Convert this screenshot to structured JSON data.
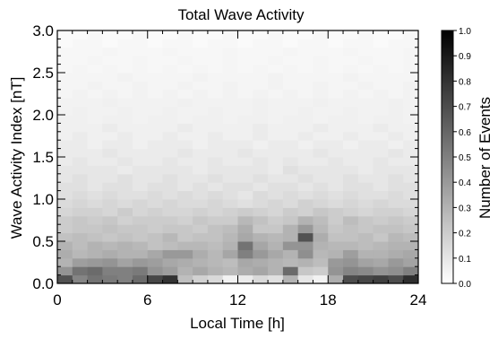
{
  "chart_data": {
    "type": "heatmap",
    "title": "Total Wave Activity",
    "xlabel": "Local Time [h]",
    "ylabel": "Wave Activity Index [nT]",
    "colorbar_label": "Number of Events",
    "x_range": [
      0,
      24
    ],
    "y_range": [
      0,
      3.0
    ],
    "x_ticks": [
      "0",
      "6",
      "12",
      "18",
      "24"
    ],
    "y_ticks": [
      "0.0",
      "0.5",
      "1.0",
      "1.5",
      "2.0",
      "2.5",
      "3.0"
    ],
    "colorbar_range": [
      0,
      1.0
    ],
    "colorbar_ticks": [
      "0.0",
      "0.1",
      "0.2",
      "0.3",
      "0.4",
      "0.5",
      "0.6",
      "0.7",
      "0.8",
      "0.9",
      "1.0"
    ],
    "colormap": "white-to-black (greyscale)",
    "x_bin_width": 1,
    "y_bin_width": 0.1,
    "values": [
      [
        0.68,
        0.48,
        0.55,
        0.52,
        0.5,
        0.58,
        0.72,
        0.8,
        0.25,
        0.18,
        0.15,
        0.05,
        0.08,
        0.15,
        0.12,
        0.3,
        0.1,
        0.05,
        0.32,
        0.7,
        0.72,
        0.75,
        0.7,
        0.82
      ],
      [
        0.42,
        0.55,
        0.58,
        0.5,
        0.5,
        0.52,
        0.42,
        0.38,
        0.3,
        0.34,
        0.3,
        0.28,
        0.32,
        0.35,
        0.3,
        0.58,
        0.22,
        0.2,
        0.42,
        0.48,
        0.46,
        0.42,
        0.44,
        0.5
      ],
      [
        0.3,
        0.38,
        0.4,
        0.42,
        0.36,
        0.4,
        0.38,
        0.34,
        0.32,
        0.3,
        0.28,
        0.26,
        0.34,
        0.32,
        0.3,
        0.28,
        0.3,
        0.26,
        0.4,
        0.42,
        0.36,
        0.34,
        0.4,
        0.36
      ],
      [
        0.32,
        0.28,
        0.3,
        0.32,
        0.3,
        0.3,
        0.34,
        0.4,
        0.4,
        0.32,
        0.28,
        0.35,
        0.5,
        0.4,
        0.34,
        0.3,
        0.44,
        0.28,
        0.3,
        0.38,
        0.3,
        0.3,
        0.32,
        0.34
      ],
      [
        0.3,
        0.26,
        0.3,
        0.28,
        0.3,
        0.28,
        0.24,
        0.26,
        0.28,
        0.28,
        0.26,
        0.3,
        0.55,
        0.35,
        0.3,
        0.42,
        0.42,
        0.3,
        0.28,
        0.28,
        0.26,
        0.28,
        0.3,
        0.3
      ],
      [
        0.24,
        0.26,
        0.24,
        0.22,
        0.24,
        0.22,
        0.24,
        0.28,
        0.22,
        0.24,
        0.24,
        0.28,
        0.34,
        0.3,
        0.28,
        0.3,
        0.68,
        0.32,
        0.24,
        0.24,
        0.26,
        0.22,
        0.28,
        0.26
      ],
      [
        0.2,
        0.22,
        0.22,
        0.24,
        0.22,
        0.22,
        0.2,
        0.22,
        0.22,
        0.2,
        0.24,
        0.26,
        0.32,
        0.22,
        0.22,
        0.3,
        0.4,
        0.28,
        0.22,
        0.24,
        0.22,
        0.24,
        0.24,
        0.22
      ],
      [
        0.2,
        0.22,
        0.2,
        0.22,
        0.18,
        0.2,
        0.2,
        0.2,
        0.18,
        0.22,
        0.2,
        0.2,
        0.28,
        0.24,
        0.2,
        0.22,
        0.3,
        0.26,
        0.2,
        0.26,
        0.22,
        0.2,
        0.22,
        0.2
      ],
      [
        0.16,
        0.18,
        0.18,
        0.16,
        0.2,
        0.16,
        0.18,
        0.16,
        0.16,
        0.18,
        0.16,
        0.18,
        0.2,
        0.18,
        0.16,
        0.2,
        0.18,
        0.22,
        0.2,
        0.18,
        0.16,
        0.18,
        0.18,
        0.16
      ],
      [
        0.14,
        0.16,
        0.14,
        0.16,
        0.14,
        0.16,
        0.14,
        0.16,
        0.14,
        0.14,
        0.16,
        0.14,
        0.12,
        0.14,
        0.16,
        0.14,
        0.18,
        0.16,
        0.14,
        0.16,
        0.14,
        0.16,
        0.14,
        0.14
      ],
      [
        0.12,
        0.14,
        0.12,
        0.14,
        0.12,
        0.12,
        0.14,
        0.12,
        0.14,
        0.12,
        0.14,
        0.12,
        0.1,
        0.14,
        0.12,
        0.14,
        0.12,
        0.14,
        0.12,
        0.14,
        0.12,
        0.12,
        0.14,
        0.12
      ],
      [
        0.12,
        0.12,
        0.1,
        0.12,
        0.12,
        0.1,
        0.12,
        0.12,
        0.1,
        0.12,
        0.1,
        0.12,
        0.12,
        0.1,
        0.12,
        0.12,
        0.1,
        0.12,
        0.1,
        0.12,
        0.12,
        0.1,
        0.12,
        0.12
      ],
      [
        0.1,
        0.12,
        0.1,
        0.1,
        0.12,
        0.1,
        0.1,
        0.12,
        0.1,
        0.1,
        0.12,
        0.1,
        0.1,
        0.12,
        0.1,
        0.1,
        0.12,
        0.1,
        0.1,
        0.12,
        0.1,
        0.1,
        0.12,
        0.1
      ],
      [
        0.1,
        0.1,
        0.1,
        0.1,
        0.08,
        0.1,
        0.1,
        0.1,
        0.1,
        0.08,
        0.1,
        0.1,
        0.1,
        0.1,
        0.08,
        0.12,
        0.1,
        0.1,
        0.1,
        0.1,
        0.08,
        0.1,
        0.1,
        0.1
      ],
      [
        0.08,
        0.1,
        0.08,
        0.08,
        0.1,
        0.08,
        0.08,
        0.1,
        0.08,
        0.08,
        0.1,
        0.08,
        0.08,
        0.1,
        0.08,
        0.1,
        0.08,
        0.08,
        0.1,
        0.08,
        0.08,
        0.1,
        0.08,
        0.08
      ],
      [
        0.08,
        0.08,
        0.08,
        0.1,
        0.08,
        0.08,
        0.08,
        0.08,
        0.1,
        0.08,
        0.08,
        0.08,
        0.1,
        0.08,
        0.08,
        0.08,
        0.08,
        0.1,
        0.08,
        0.08,
        0.08,
        0.08,
        0.1,
        0.08
      ],
      [
        0.08,
        0.08,
        0.06,
        0.08,
        0.08,
        0.06,
        0.08,
        0.08,
        0.08,
        0.06,
        0.08,
        0.08,
        0.08,
        0.06,
        0.08,
        0.08,
        0.06,
        0.08,
        0.08,
        0.06,
        0.08,
        0.08,
        0.06,
        0.08
      ],
      [
        0.06,
        0.08,
        0.06,
        0.06,
        0.08,
        0.06,
        0.06,
        0.08,
        0.06,
        0.06,
        0.08,
        0.06,
        0.06,
        0.08,
        0.06,
        0.06,
        0.08,
        0.06,
        0.06,
        0.08,
        0.06,
        0.06,
        0.08,
        0.06
      ],
      [
        0.06,
        0.06,
        0.06,
        0.08,
        0.06,
        0.06,
        0.06,
        0.06,
        0.08,
        0.06,
        0.06,
        0.06,
        0.06,
        0.08,
        0.06,
        0.06,
        0.06,
        0.08,
        0.06,
        0.06,
        0.06,
        0.08,
        0.06,
        0.06
      ],
      [
        0.06,
        0.06,
        0.05,
        0.06,
        0.06,
        0.05,
        0.06,
        0.06,
        0.05,
        0.06,
        0.06,
        0.05,
        0.06,
        0.06,
        0.05,
        0.06,
        0.06,
        0.05,
        0.06,
        0.06,
        0.05,
        0.06,
        0.06,
        0.05
      ],
      [
        0.05,
        0.06,
        0.05,
        0.05,
        0.06,
        0.05,
        0.05,
        0.06,
        0.05,
        0.05,
        0.06,
        0.05,
        0.05,
        0.06,
        0.05,
        0.05,
        0.06,
        0.05,
        0.05,
        0.06,
        0.05,
        0.05,
        0.06,
        0.05
      ],
      [
        0.05,
        0.05,
        0.05,
        0.06,
        0.05,
        0.05,
        0.05,
        0.05,
        0.06,
        0.05,
        0.05,
        0.05,
        0.05,
        0.06,
        0.05,
        0.05,
        0.05,
        0.06,
        0.05,
        0.05,
        0.05,
        0.05,
        0.06,
        0.05
      ],
      [
        0.04,
        0.05,
        0.04,
        0.05,
        0.04,
        0.05,
        0.04,
        0.05,
        0.04,
        0.05,
        0.04,
        0.05,
        0.04,
        0.05,
        0.04,
        0.05,
        0.04,
        0.05,
        0.04,
        0.05,
        0.04,
        0.05,
        0.04,
        0.05
      ],
      [
        0.04,
        0.04,
        0.05,
        0.04,
        0.04,
        0.05,
        0.04,
        0.04,
        0.05,
        0.04,
        0.04,
        0.05,
        0.04,
        0.04,
        0.05,
        0.04,
        0.04,
        0.05,
        0.04,
        0.04,
        0.05,
        0.04,
        0.04,
        0.05
      ],
      [
        0.04,
        0.04,
        0.04,
        0.04,
        0.05,
        0.04,
        0.04,
        0.04,
        0.04,
        0.05,
        0.04,
        0.04,
        0.04,
        0.04,
        0.05,
        0.04,
        0.04,
        0.04,
        0.04,
        0.05,
        0.04,
        0.04,
        0.04,
        0.04
      ],
      [
        0.03,
        0.04,
        0.03,
        0.04,
        0.03,
        0.04,
        0.03,
        0.04,
        0.03,
        0.04,
        0.03,
        0.04,
        0.03,
        0.04,
        0.03,
        0.04,
        0.03,
        0.04,
        0.03,
        0.04,
        0.03,
        0.04,
        0.03,
        0.04
      ],
      [
        0.03,
        0.03,
        0.04,
        0.03,
        0.03,
        0.04,
        0.03,
        0.03,
        0.04,
        0.03,
        0.03,
        0.04,
        0.03,
        0.03,
        0.04,
        0.03,
        0.03,
        0.04,
        0.03,
        0.03,
        0.04,
        0.03,
        0.03,
        0.04
      ],
      [
        0.03,
        0.03,
        0.03,
        0.04,
        0.03,
        0.03,
        0.03,
        0.04,
        0.03,
        0.03,
        0.03,
        0.04,
        0.03,
        0.03,
        0.03,
        0.04,
        0.03,
        0.03,
        0.03,
        0.04,
        0.03,
        0.03,
        0.03,
        0.04
      ],
      [
        0.02,
        0.03,
        0.03,
        0.02,
        0.03,
        0.03,
        0.02,
        0.03,
        0.03,
        0.02,
        0.03,
        0.03,
        0.02,
        0.03,
        0.03,
        0.02,
        0.03,
        0.03,
        0.02,
        0.03,
        0.03,
        0.02,
        0.03,
        0.03
      ],
      [
        0.02,
        0.02,
        0.03,
        0.02,
        0.02,
        0.03,
        0.02,
        0.02,
        0.03,
        0.02,
        0.02,
        0.03,
        0.02,
        0.02,
        0.03,
        0.02,
        0.02,
        0.03,
        0.02,
        0.02,
        0.03,
        0.02,
        0.02,
        0.03
      ]
    ]
  }
}
